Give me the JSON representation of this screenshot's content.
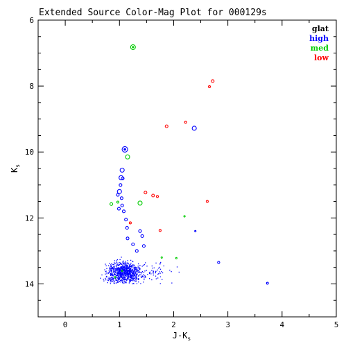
{
  "chart_data": {
    "type": "scatter",
    "title": "Extended Source Color-Mag Plot for 000129s",
    "xlabel": "J-K",
    "xlabel_sub": "s",
    "ylabel": "K",
    "ylabel_sub": "s",
    "xlim": [
      -0.5,
      5.0
    ],
    "ylim": [
      15.0,
      6.0
    ],
    "y_inverted": true,
    "x_major_ticks": [
      0,
      1,
      2,
      3,
      4,
      5
    ],
    "x_tick_labels": [
      "0",
      "1",
      "2",
      "3",
      "4",
      "5"
    ],
    "y_major_ticks": [
      6,
      8,
      10,
      12,
      14
    ],
    "y_tick_labels": [
      "6",
      "8",
      "10",
      "12",
      "14"
    ],
    "grid": false,
    "legend_position": "top-right",
    "legend": [
      {
        "label": "glat",
        "color": "#000000"
      },
      {
        "label": "high",
        "color": "#0000ff"
      },
      {
        "label": "med",
        "color": "#00cc00"
      },
      {
        "label": "low",
        "color": "#ff0000"
      }
    ],
    "series": [
      {
        "name": "high",
        "color": "#0000ff",
        "points": [
          {
            "x": 1.1,
            "y": 9.92,
            "size": 4
          },
          {
            "x": 1.05,
            "y": 10.55,
            "size": 3
          },
          {
            "x": 1.03,
            "y": 10.78,
            "size": 3
          },
          {
            "x": 1.06,
            "y": 10.8,
            "size": 2
          },
          {
            "x": 1.02,
            "y": 11.0,
            "size": 2
          },
          {
            "x": 1.0,
            "y": 11.2,
            "size": 3
          },
          {
            "x": 0.97,
            "y": 11.3,
            "size": 2
          },
          {
            "x": 1.04,
            "y": 11.4,
            "size": 2
          },
          {
            "x": 2.38,
            "y": 9.28,
            "size": 3
          },
          {
            "x": 1.05,
            "y": 11.62,
            "size": 2
          },
          {
            "x": 0.99,
            "y": 11.72,
            "size": 2
          },
          {
            "x": 1.08,
            "y": 11.8,
            "size": 2
          },
          {
            "x": 1.12,
            "y": 12.05,
            "size": 2
          },
          {
            "x": 1.14,
            "y": 12.3,
            "size": 2
          },
          {
            "x": 1.38,
            "y": 12.4,
            "size": 2
          },
          {
            "x": 1.42,
            "y": 12.55,
            "size": 2
          },
          {
            "x": 1.15,
            "y": 12.62,
            "size": 2
          },
          {
            "x": 1.45,
            "y": 12.85,
            "size": 2
          },
          {
            "x": 1.25,
            "y": 12.8,
            "size": 2
          },
          {
            "x": 1.32,
            "y": 13.0,
            "size": 2
          },
          {
            "x": 2.83,
            "y": 13.35,
            "size": 1.6
          },
          {
            "x": 2.4,
            "y": 12.4,
            "size": 1
          },
          {
            "x": 3.73,
            "y": 13.98,
            "size": 1.4
          }
        ]
      },
      {
        "name": "med",
        "color": "#00cc00",
        "points": [
          {
            "x": 1.25,
            "y": 6.82,
            "size": 3.5
          },
          {
            "x": 1.15,
            "y": 10.15,
            "size": 3
          },
          {
            "x": 1.38,
            "y": 11.55,
            "size": 3
          },
          {
            "x": 0.85,
            "y": 11.58,
            "size": 2
          },
          {
            "x": 0.97,
            "y": 11.52,
            "size": 1.5
          },
          {
            "x": 2.2,
            "y": 11.95,
            "size": 1
          },
          {
            "x": 1.78,
            "y": 13.2,
            "size": 1
          },
          {
            "x": 2.05,
            "y": 13.22,
            "size": 1
          },
          {
            "x": 0.92,
            "y": 13.8,
            "size": 1
          },
          {
            "x": 1.05,
            "y": 13.6,
            "size": 1
          }
        ]
      },
      {
        "name": "low",
        "color": "#ff0000",
        "points": [
          {
            "x": 2.72,
            "y": 7.85,
            "size": 2
          },
          {
            "x": 2.66,
            "y": 8.02,
            "size": 1.5
          },
          {
            "x": 1.87,
            "y": 9.22,
            "size": 2
          },
          {
            "x": 2.22,
            "y": 9.1,
            "size": 1.5
          },
          {
            "x": 1.48,
            "y": 11.23,
            "size": 2
          },
          {
            "x": 1.62,
            "y": 11.32,
            "size": 2
          },
          {
            "x": 1.7,
            "y": 11.35,
            "size": 1.5
          },
          {
            "x": 2.62,
            "y": 11.5,
            "size": 1.5
          },
          {
            "x": 1.2,
            "y": 12.15,
            "size": 1.5
          },
          {
            "x": 1.75,
            "y": 12.38,
            "size": 1.5
          }
        ]
      }
    ],
    "dense_cloud": {
      "series": "high",
      "color": "#0000ff",
      "count": 900,
      "x_range": [
        0.6,
        2.3
      ],
      "y_range": [
        12.2,
        14.0
      ],
      "x_center": 1.08,
      "y_center": 13.65
    }
  }
}
